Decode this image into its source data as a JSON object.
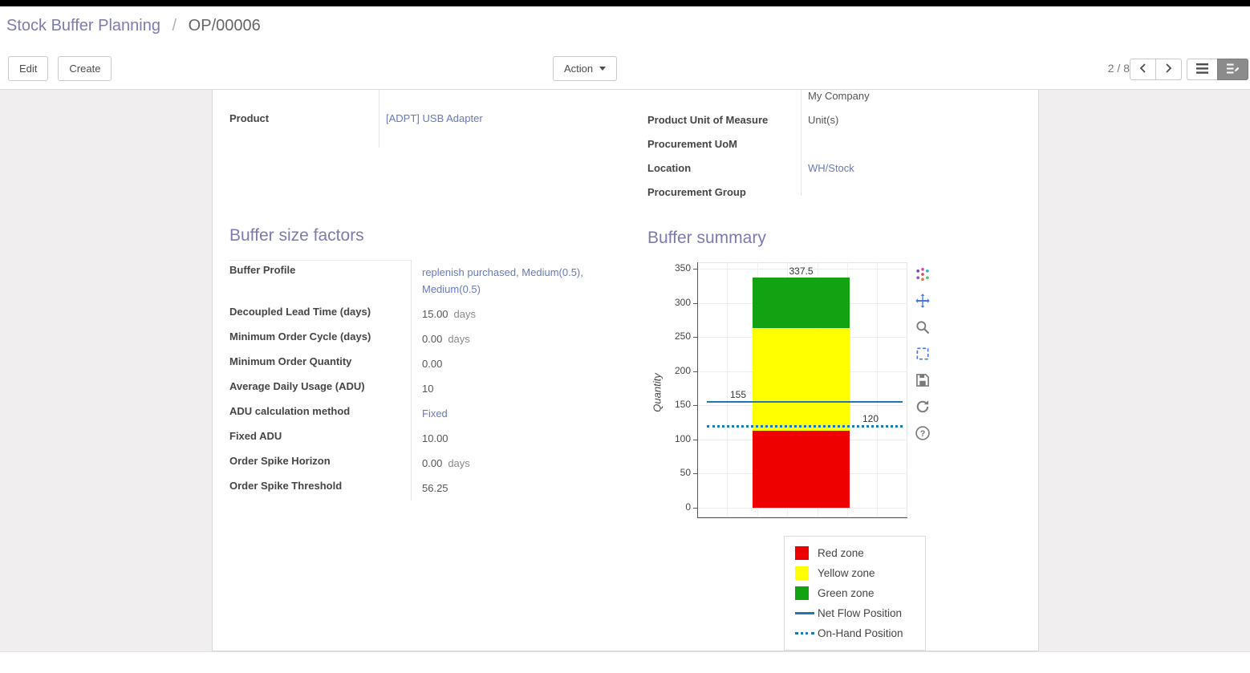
{
  "breadcrumb": {
    "parent": "Stock Buffer Planning",
    "separator": "/",
    "current": "OP/00006"
  },
  "control_panel": {
    "edit_label": "Edit",
    "create_label": "Create",
    "action_label": "Action",
    "pager": "2 / 8",
    "icons": [
      "caret-down-icon",
      "chevron-left-icon",
      "chevron-right-icon",
      "list-view-icon",
      "form-view-icon"
    ]
  },
  "form": {
    "left_fields": [
      {
        "label": "Product",
        "value": "[ADPT] USB Adapter",
        "link": true
      }
    ],
    "right_fields": [
      {
        "label": "",
        "value": "My Company",
        "clipped": true
      },
      {
        "label": "Product Unit of Measure",
        "value": "Unit(s)"
      },
      {
        "label": "Procurement UoM",
        "value": ""
      },
      {
        "label": "Location",
        "value": "WH/Stock",
        "link": true
      },
      {
        "label": "Procurement Group",
        "value": ""
      }
    ],
    "sections": {
      "factors_title": "Buffer size factors",
      "summary_title": "Buffer summary"
    },
    "factor_fields": [
      {
        "label": "Buffer Profile",
        "value": "replenish purchased, Medium(0.5), Medium(0.5)",
        "link": true
      },
      {
        "label": "Decoupled Lead Time (days)",
        "value": "15.00",
        "suffix": "days"
      },
      {
        "label": "Minimum Order Cycle (days)",
        "value": "0.00",
        "suffix": "days"
      },
      {
        "label": "Minimum Order Quantity",
        "value": "0.00"
      },
      {
        "label": "Average Daily Usage (ADU)",
        "value": "10"
      },
      {
        "label": "ADU calculation method",
        "value": "Fixed",
        "link": true
      },
      {
        "label": "Fixed ADU",
        "value": "10.00"
      },
      {
        "label": "Order Spike Horizon",
        "value": "0.00",
        "suffix": "days"
      },
      {
        "label": "Order Spike Threshold",
        "value": "56.25"
      }
    ]
  },
  "chart_data": {
    "type": "bar",
    "stacked": true,
    "title": "Buffer summary",
    "xlabel": "",
    "ylabel": "Quantity",
    "ylim": [
      0,
      350
    ],
    "ytick_step": 50,
    "grid": true,
    "zones": [
      {
        "name": "Red zone",
        "from": 0,
        "to": 112.5,
        "color": "#ee0000"
      },
      {
        "name": "Yellow zone",
        "from": 112.5,
        "to": 262.5,
        "color": "#ffff00"
      },
      {
        "name": "Green zone",
        "from": 262.5,
        "to": 337.5,
        "color": "#12a212"
      }
    ],
    "lines": [
      {
        "name": "Net Flow Position",
        "value": 155,
        "style": "solid",
        "color": "#1f77b4",
        "label_side": "left"
      },
      {
        "name": "On-Hand Position",
        "value": 120,
        "style": "dotted",
        "color": "#1f77b4",
        "label_side": "right"
      }
    ],
    "boundary_labels": [
      "112.5",
      "262.5",
      "337.5"
    ],
    "line_labels": [
      "155",
      "120"
    ],
    "legend": [
      "Red zone",
      "Yellow zone",
      "Green zone",
      "Net Flow Position",
      "On-Hand Position"
    ],
    "legend_position": "bottom-right"
  },
  "modebar": {
    "icons": [
      {
        "name": "plotly-logo-icon",
        "active": false
      },
      {
        "name": "pan-icon",
        "active": true
      },
      {
        "name": "zoom-icon",
        "active": false
      },
      {
        "name": "box-select-icon",
        "active": true
      },
      {
        "name": "save-image-icon",
        "active": false
      },
      {
        "name": "reset-axes-icon",
        "active": false
      },
      {
        "name": "help-icon",
        "active": false
      }
    ]
  }
}
